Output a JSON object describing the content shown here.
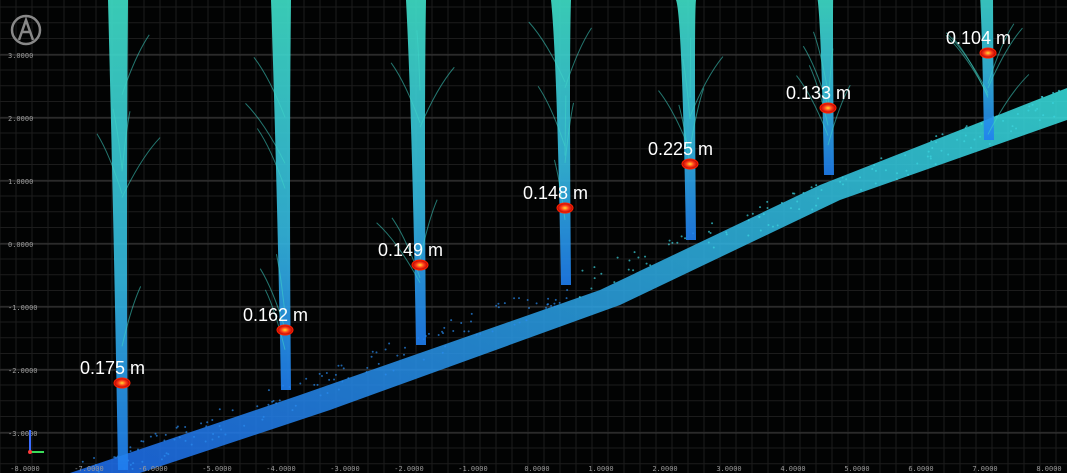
{
  "y_axis": {
    "labels": [
      "3.0000",
      "2.0000",
      "1.0000",
      "0.0000",
      "-1.0000",
      "-2.0000",
      "-3.0000"
    ]
  },
  "x_axis": {
    "labels": [
      "-8.0000",
      "-7.0000",
      "-6.0000",
      "-5.0000",
      "-4.0000",
      "-3.0000",
      "-2.0000",
      "-1.0000",
      "0.0000",
      "1.0000",
      "2.0000",
      "3.0000",
      "4.0000",
      "5.0000",
      "6.0000",
      "7.0000",
      "8.0000"
    ]
  },
  "measurements": [
    {
      "label": "0.175 m"
    },
    {
      "label": "0.162 m"
    },
    {
      "label": "0.149 m"
    },
    {
      "label": "0.148 m"
    },
    {
      "label": "0.225 m"
    },
    {
      "label": "0.133 m"
    },
    {
      "label": "0.104 m"
    }
  ]
}
